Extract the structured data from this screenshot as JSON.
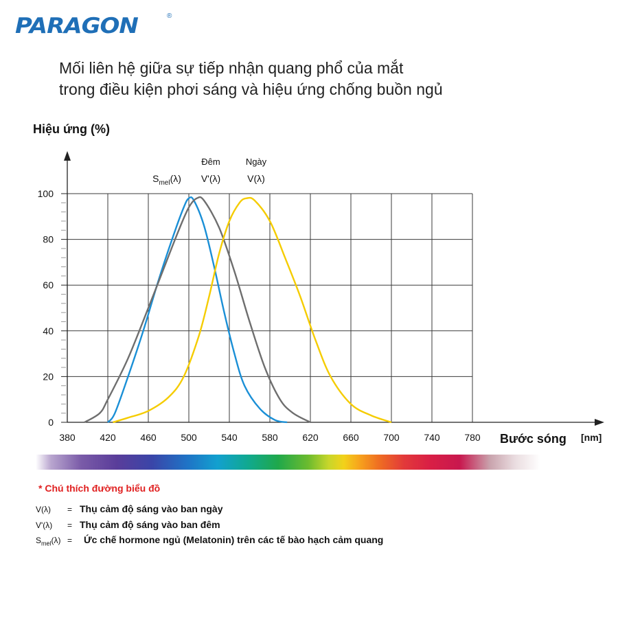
{
  "brand": {
    "name": "PARAGON",
    "mark": "®"
  },
  "title_lines": [
    "Mối liên hệ giữa sự tiếp nhận quang phổ của mắt",
    "trong điều kiện phơi sáng và hiệu ứng chống buồn ngủ"
  ],
  "chart_data": {
    "type": "line",
    "ylabel": "Hiệu ứng (%)",
    "xlabel": "Bước sóng",
    "xunit": "[nm]",
    "xlim": [
      380,
      800
    ],
    "ylim": [
      0,
      100
    ],
    "x_ticks": [
      380,
      420,
      460,
      500,
      540,
      580,
      620,
      660,
      700,
      740,
      780
    ],
    "y_ticks": [
      0,
      20,
      40,
      60,
      80,
      100
    ],
    "grid": true,
    "series": [
      {
        "name": "Smel(λ)",
        "caption": "",
        "color": "#1a8fd6",
        "points": [
          [
            420,
            0
          ],
          [
            427,
            4
          ],
          [
            440,
            20
          ],
          [
            455,
            40
          ],
          [
            470,
            62
          ],
          [
            485,
            82
          ],
          [
            495,
            94
          ],
          [
            500,
            98
          ],
          [
            505,
            97
          ],
          [
            515,
            86
          ],
          [
            525,
            68
          ],
          [
            535,
            48
          ],
          [
            545,
            30
          ],
          [
            555,
            16
          ],
          [
            570,
            6
          ],
          [
            585,
            1
          ],
          [
            597,
            0
          ]
        ]
      },
      {
        "name": "V'(λ)",
        "caption": "Đêm",
        "color": "#6e6e6e",
        "points": [
          [
            397,
            0
          ],
          [
            412,
            4
          ],
          [
            420,
            10
          ],
          [
            440,
            28
          ],
          [
            460,
            50
          ],
          [
            475,
            67
          ],
          [
            490,
            84
          ],
          [
            500,
            94
          ],
          [
            508,
            98
          ],
          [
            515,
            97
          ],
          [
            530,
            85
          ],
          [
            545,
            66
          ],
          [
            560,
            44
          ],
          [
            575,
            24
          ],
          [
            590,
            10
          ],
          [
            603,
            4
          ],
          [
            620,
            0
          ]
        ]
      },
      {
        "name": "V(λ)",
        "caption": "Ngày",
        "color": "#f5cc00",
        "points": [
          [
            425,
            0
          ],
          [
            440,
            2
          ],
          [
            460,
            5
          ],
          [
            480,
            11
          ],
          [
            495,
            20
          ],
          [
            510,
            38
          ],
          [
            520,
            55
          ],
          [
            530,
            74
          ],
          [
            540,
            88
          ],
          [
            550,
            96
          ],
          [
            557,
            98
          ],
          [
            565,
            97
          ],
          [
            580,
            88
          ],
          [
            595,
            72
          ],
          [
            610,
            55
          ],
          [
            625,
            36
          ],
          [
            640,
            20
          ],
          [
            660,
            8
          ],
          [
            680,
            3
          ],
          [
            700,
            0
          ]
        ]
      }
    ]
  },
  "legend_note": {
    "heading": "* Chú thích đường biểu đồ",
    "items": [
      {
        "symbol": "V(λ)",
        "eq": "=",
        "desc": "Thụ cảm độ sáng vào ban ngày"
      },
      {
        "symbol": "V'(λ)",
        "eq": "=",
        "desc": "Thụ cảm độ sáng vào ban đêm"
      },
      {
        "symbol_main": "S",
        "symbol_sub": "mel",
        "symbol_tail": "(λ)",
        "eq": "=",
        "desc": "Ức chế hormone ngủ (Melatonin) trên các tế bào hạch cảm quang"
      }
    ]
  }
}
